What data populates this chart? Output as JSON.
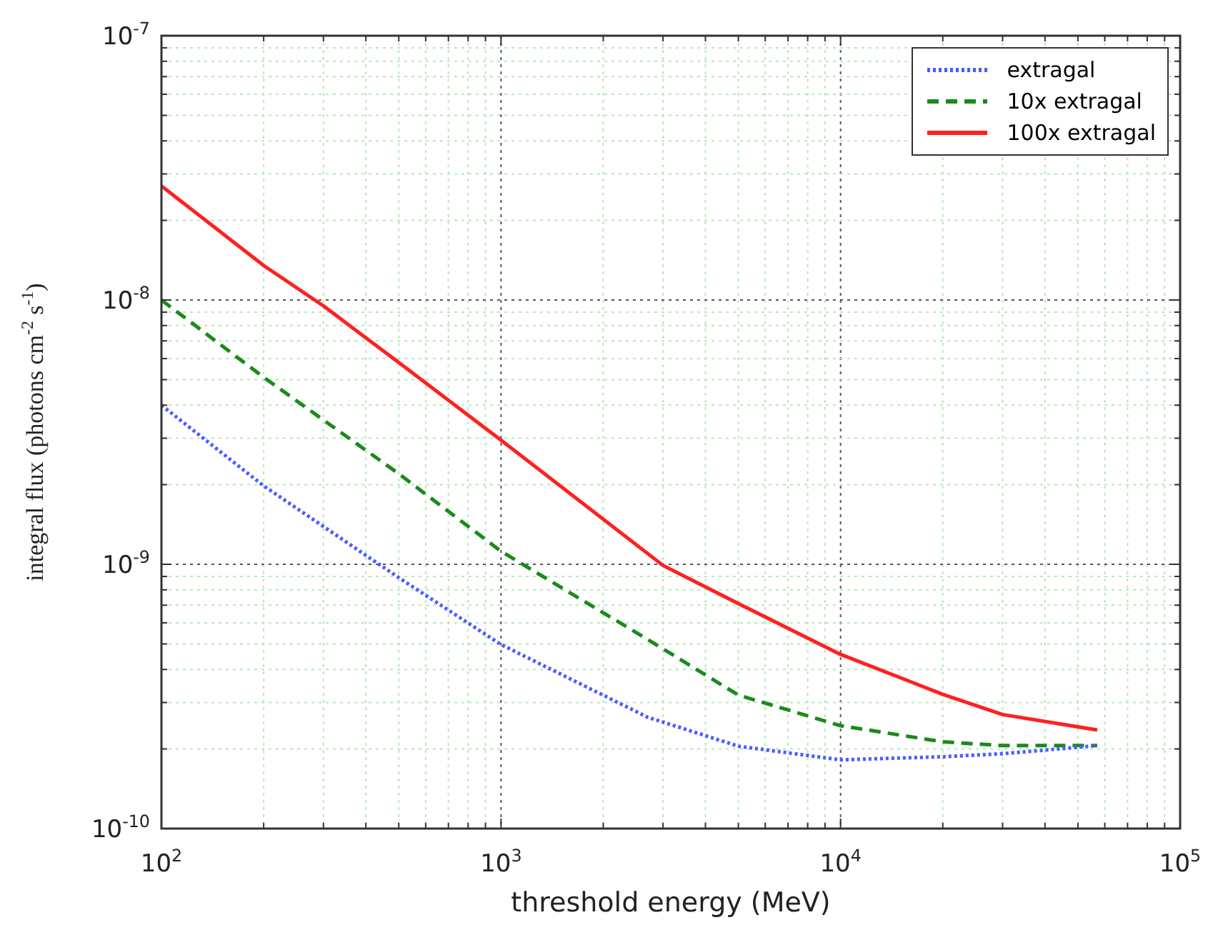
{
  "chart_data": {
    "type": "line",
    "xlabel": "threshold energy (MeV)",
    "ylabel": "integral flux (photons cm$^{-2}$ s$^{-1}$)",
    "log": "xy",
    "grid": true,
    "legend": "top right",
    "xlim": [
      100,
      100000
    ],
    "ylim": [
      1e-10,
      1e-07
    ],
    "xticks": [
      {
        "value": 100,
        "label": "10$^{2}$"
      },
      {
        "value": 200,
        "label": null
      },
      {
        "value": 300,
        "label": null
      },
      {
        "value": 400,
        "label": null
      },
      {
        "value": 500,
        "label": null
      },
      {
        "value": 600,
        "label": null
      },
      {
        "value": 700,
        "label": null
      },
      {
        "value": 800,
        "label": null
      },
      {
        "value": 900,
        "label": null
      },
      {
        "value": 1000,
        "label": "10$^{3}$"
      },
      {
        "value": 2000,
        "label": null
      },
      {
        "value": 3000,
        "label": null
      },
      {
        "value": 4000,
        "label": null
      },
      {
        "value": 5000,
        "label": null
      },
      {
        "value": 6000,
        "label": null
      },
      {
        "value": 7000,
        "label": null
      },
      {
        "value": 8000,
        "label": null
      },
      {
        "value": 9000,
        "label": null
      },
      {
        "value": 10000,
        "label": "10$^{4}$"
      },
      {
        "value": 20000,
        "label": null
      },
      {
        "value": 30000,
        "label": null
      },
      {
        "value": 40000,
        "label": null
      },
      {
        "value": 50000,
        "label": null
      },
      {
        "value": 60000,
        "label": null
      },
      {
        "value": 70000,
        "label": null
      },
      {
        "value": 80000,
        "label": null
      },
      {
        "value": 90000,
        "label": null
      },
      {
        "value": 100000,
        "label": "10$^{5}$"
      }
    ],
    "yticks": [
      {
        "value": 1e-10,
        "label": "10$^{-10}$"
      },
      {
        "value": 2e-10,
        "label": null
      },
      {
        "value": 3e-10,
        "label": null
      },
      {
        "value": 4e-10,
        "label": null
      },
      {
        "value": 5e-10,
        "label": null
      },
      {
        "value": 6e-10,
        "label": null
      },
      {
        "value": 7e-10,
        "label": null
      },
      {
        "value": 8e-10,
        "label": null
      },
      {
        "value": 9e-10,
        "label": null
      },
      {
        "value": 1e-09,
        "label": "10$^{-9}$"
      },
      {
        "value": 2e-09,
        "label": null
      },
      {
        "value": 3e-09,
        "label": null
      },
      {
        "value": 4e-09,
        "label": null
      },
      {
        "value": 5e-09,
        "label": null
      },
      {
        "value": 6e-09,
        "label": null
      },
      {
        "value": 7e-09,
        "label": null
      },
      {
        "value": 8e-09,
        "label": null
      },
      {
        "value": 9e-09,
        "label": null
      },
      {
        "value": 1e-08,
        "label": "10$^{-8}$"
      },
      {
        "value": 2e-08,
        "label": null
      },
      {
        "value": 3e-08,
        "label": null
      },
      {
        "value": 4e-08,
        "label": null
      },
      {
        "value": 5e-08,
        "label": null
      },
      {
        "value": 6e-08,
        "label": null
      },
      {
        "value": 7e-08,
        "label": null
      },
      {
        "value": 8e-08,
        "label": null
      },
      {
        "value": 9e-08,
        "label": null
      },
      {
        "value": 1e-07,
        "label": "10$^{-7}$"
      }
    ],
    "series": [
      {
        "name": "extragal",
        "color": "#4b5cff",
        "line_style": "dotted",
        "x": [
          100,
          200,
          500,
          1000,
          2700,
          5000,
          10000,
          20000,
          30000,
          57000
        ],
        "values": [
          4e-09,
          1.98e-09,
          8.9e-10,
          4.97e-10,
          2.64e-10,
          2.05e-10,
          1.82e-10,
          1.87e-10,
          1.92e-10,
          2.06e-10
        ]
      },
      {
        "name": "10x extragal",
        "color": "#1a8a1a",
        "line_style": "dashed",
        "x": [
          100,
          200,
          500,
          1000,
          2700,
          5000,
          10000,
          20000,
          30000,
          57000
        ],
        "values": [
          1e-08,
          5.1e-09,
          2.2e-09,
          1.12e-09,
          5.2e-10,
          3.2e-10,
          2.45e-10,
          2.13e-10,
          2.06e-10,
          2.06e-10
        ]
      },
      {
        "name": "100x extragal",
        "color": "#ff2020",
        "line_style": "solid",
        "x": [
          100,
          200,
          300,
          500,
          1000,
          3000,
          5000,
          10000,
          20000,
          30000,
          57000
        ],
        "values": [
          2.7e-08,
          1.35e-08,
          9.5e-09,
          5.8e-09,
          2.95e-09,
          9.9e-10,
          7.1e-10,
          4.56e-10,
          3.22e-10,
          2.7e-10,
          2.36e-10
        ]
      }
    ]
  }
}
